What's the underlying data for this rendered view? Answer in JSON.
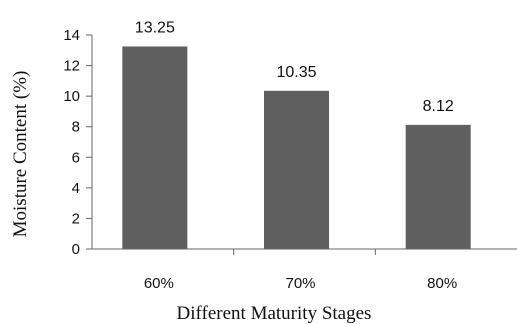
{
  "chart_data": {
    "type": "bar",
    "categories": [
      "60%",
      "70%",
      "80%"
    ],
    "values": [
      13.25,
      10.35,
      8.12
    ],
    "data_labels": [
      "13.25",
      "10.35",
      "8.12"
    ],
    "title": "",
    "xlabel": "Different Maturity Stages",
    "ylabel": "Moisture Content (%)",
    "ylim": [
      0,
      14
    ],
    "yticks": [
      "0",
      "2",
      "4",
      "6",
      "8",
      "10",
      "12",
      "14"
    ],
    "grid": false,
    "legend": "none",
    "bar_color": "#5f5f5f"
  }
}
